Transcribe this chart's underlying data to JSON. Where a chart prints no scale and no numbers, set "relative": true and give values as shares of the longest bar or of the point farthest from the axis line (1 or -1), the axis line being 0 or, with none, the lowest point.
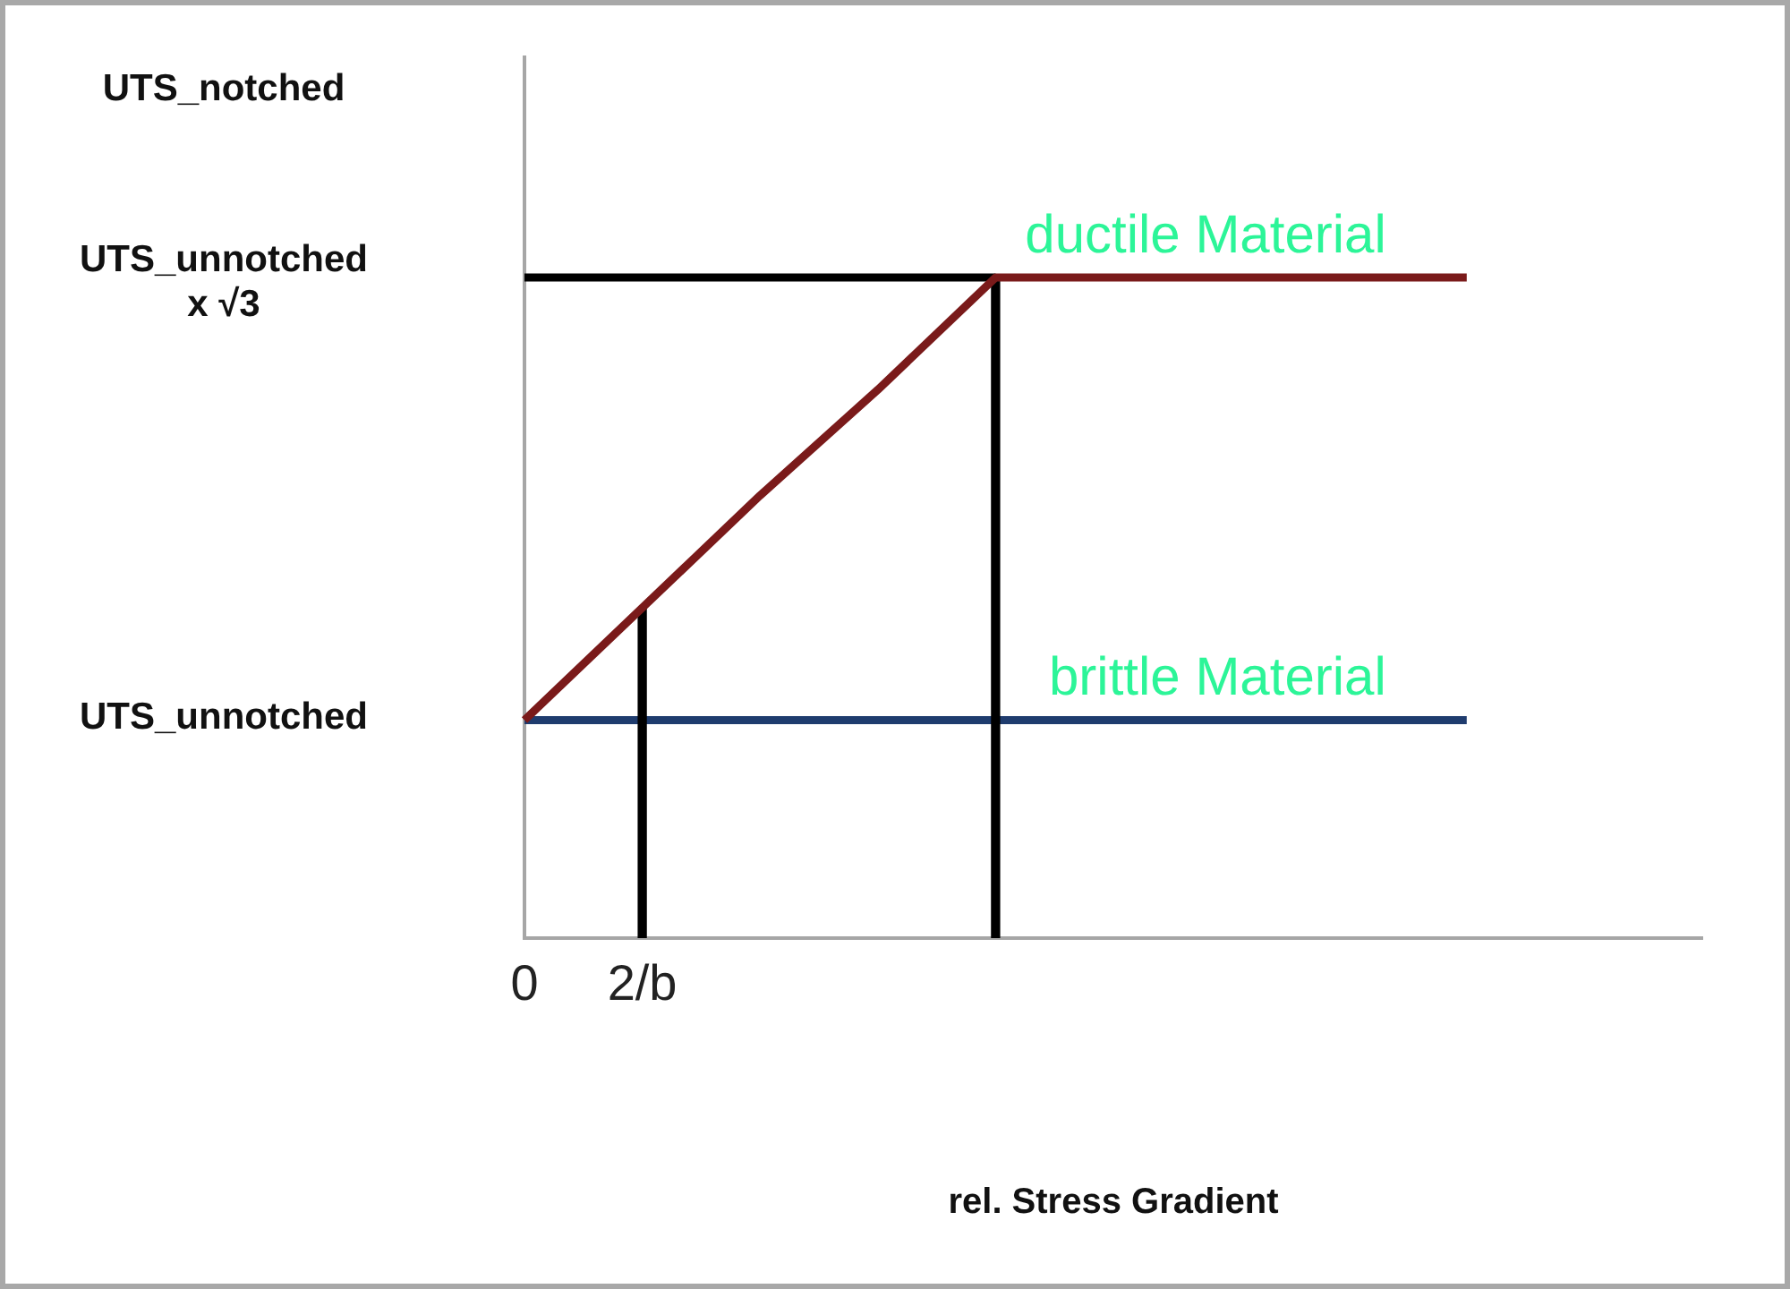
{
  "chart_data": {
    "type": "line",
    "relative": true,
    "xlabel": "rel. Stress Gradient",
    "categories": [
      "0",
      "2/b",
      null,
      null,
      null,
      null,
      null,
      null,
      null,
      null,
      null
    ],
    "series": [
      {
        "name": "brittle Material",
        "color": "#1f3c6e",
        "values": [
          0.33,
          0.33,
          0.33,
          0.33,
          0.33,
          0.33,
          0.33,
          0.33,
          0.33,
          null,
          null
        ]
      },
      {
        "color": "#000000",
        "values": [
          1,
          1,
          1,
          1,
          1,
          null,
          null,
          null,
          null,
          null,
          null
        ]
      },
      {
        "type": "bar",
        "color": "#000000",
        "values": [
          null,
          0.5,
          null,
          null,
          1,
          null,
          null,
          null,
          null,
          null,
          null
        ]
      },
      {
        "name": "ductile Material",
        "color": "#7a1a1a",
        "values": [
          0.33,
          0.5,
          0.67,
          0.83,
          1,
          1,
          1,
          1,
          1,
          null,
          null
        ]
      }
    ],
    "annotations": [
      "UTS_notched",
      "UTS_unnotched x √3",
      "UTS_unnotched"
    ],
    "marker": "none",
    "line_style": "solid"
  }
}
